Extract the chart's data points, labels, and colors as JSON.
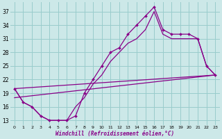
{
  "xlabel": "Windchill (Refroidissement éolien,°C)",
  "bg_color": "#cce8e8",
  "line_color": "#880088",
  "grid_color": "#99cccc",
  "xlim": [
    -0.5,
    23.5
  ],
  "ylim": [
    12,
    39
  ],
  "xticks": [
    0,
    1,
    2,
    3,
    4,
    5,
    6,
    7,
    8,
    9,
    10,
    11,
    12,
    13,
    14,
    15,
    16,
    17,
    18,
    19,
    20,
    21,
    22,
    23
  ],
  "yticks": [
    13,
    16,
    19,
    22,
    25,
    28,
    31,
    34,
    37
  ],
  "series1_x": [
    0,
    1,
    2,
    3,
    4,
    5,
    6,
    7,
    8,
    9,
    10,
    11,
    12,
    13,
    14,
    15,
    16,
    17,
    18,
    19,
    20,
    21,
    22,
    23
  ],
  "series1_y": [
    20,
    17,
    16,
    14,
    13,
    13,
    13,
    14,
    19,
    22,
    25,
    28,
    29,
    32,
    34,
    36,
    38,
    33,
    32,
    32,
    32,
    31,
    25,
    23
  ],
  "series2_x": [
    0,
    1,
    2,
    3,
    4,
    5,
    6,
    7,
    8,
    9,
    10,
    11,
    12,
    13,
    14,
    15,
    16,
    17,
    18,
    19,
    20,
    21,
    22,
    23
  ],
  "series2_y": [
    20,
    17,
    16,
    14,
    13,
    13,
    13,
    16,
    18,
    21,
    23,
    26,
    28,
    30,
    31,
    33,
    37,
    32,
    31,
    31,
    31,
    31,
    25,
    23
  ],
  "series3_x": [
    0,
    23
  ],
  "series3_y": [
    20,
    23
  ],
  "series4_x": [
    0,
    23
  ],
  "series4_y": [
    18,
    23
  ]
}
